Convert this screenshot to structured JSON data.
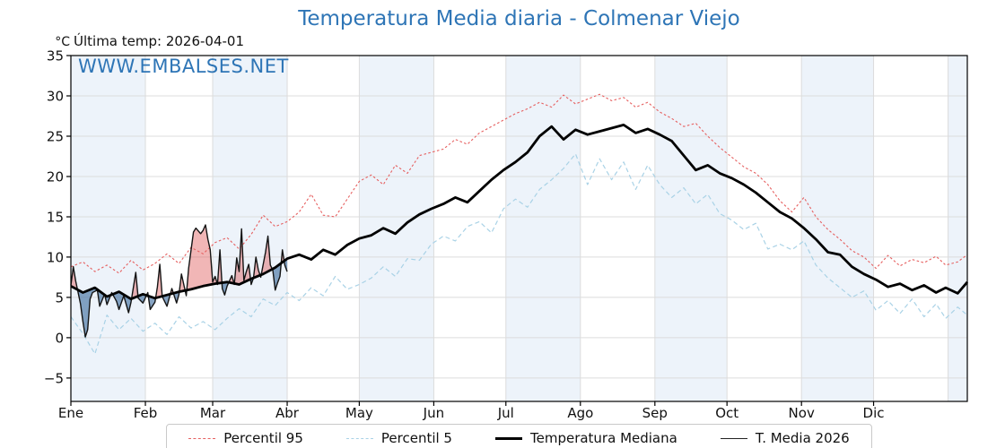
{
  "chart_data": {
    "type": "line",
    "title": "Temperatura Media diaria - Colmenar Viejo",
    "subtitle": "Última temp: 2026-04-01",
    "watermark": "WWW.EMBALSES.NET",
    "colors": {
      "accent_blue": "#2e75b6",
      "month_band": "#edf3fa",
      "grid": "#dcdcdc",
      "frame": "#000000",
      "tick_label": "#111111"
    },
    "x_axis": {
      "tick_labels": [
        "Ene",
        "Feb",
        "Mar",
        "Abr",
        "May",
        "Jun",
        "Jul",
        "Ago",
        "Sep",
        "Oct",
        "Nov",
        "Dic"
      ],
      "month_start_days": [
        1,
        32,
        60,
        91,
        121,
        152,
        182,
        213,
        244,
        274,
        305,
        335,
        366
      ],
      "min_day": 1,
      "max_day": 374,
      "shaded_months": "alternating starting Ene"
    },
    "y_axis": {
      "unit": "°C",
      "ticks": [
        -5,
        0,
        5,
        10,
        15,
        20,
        25,
        30,
        35
      ],
      "min": -7.9,
      "max": 35,
      "grid": true
    },
    "legend": {
      "position": "bottom-center",
      "labels": [
        "Percentil 95",
        "Percentil 5",
        "Temperatura Mediana",
        "T. Media 2026"
      ]
    },
    "fills": [
      {
        "between": [
          "T. Media 2026",
          "Temperatura Mediana"
        ],
        "when": "above",
        "color": "rgba(222,80,80,0.42)"
      },
      {
        "between": [
          "T. Media 2026",
          "Temperatura Mediana"
        ],
        "when": "below",
        "color": "rgba(62,108,158,0.62)"
      }
    ],
    "series": [
      {
        "name": "Percentil 95",
        "style": "dashed",
        "dash": "2.6 2.4",
        "color": "#e66060",
        "width": 1.1,
        "x": [
          1,
          6,
          11,
          16,
          21,
          26,
          31,
          36,
          41,
          46,
          51,
          56,
          61,
          66,
          71,
          76,
          81,
          86,
          91,
          96,
          101,
          106,
          111,
          116,
          121,
          126,
          131,
          136,
          141,
          146,
          151,
          156,
          161,
          166,
          171,
          176,
          181,
          186,
          191,
          196,
          201,
          206,
          211,
          216,
          221,
          226,
          231,
          236,
          241,
          246,
          251,
          256,
          261,
          266,
          271,
          276,
          281,
          286,
          291,
          296,
          301,
          306,
          311,
          316,
          321,
          326,
          331,
          336,
          341,
          346,
          351,
          356,
          361,
          365,
          370,
          374
        ],
        "y": [
          8.8,
          9.4,
          8.2,
          9.0,
          8.0,
          9.6,
          8.4,
          9.2,
          10.4,
          9.2,
          11.2,
          10.4,
          11.8,
          12.4,
          11.0,
          12.8,
          15.2,
          13.8,
          14.4,
          15.6,
          17.8,
          15.2,
          15.0,
          17.2,
          19.4,
          20.2,
          19.0,
          21.4,
          20.4,
          22.6,
          23.0,
          23.4,
          24.6,
          24.0,
          25.4,
          26.2,
          27.0,
          27.8,
          28.4,
          29.2,
          28.6,
          30.1,
          29.0,
          29.6,
          30.2,
          29.4,
          29.8,
          28.6,
          29.2,
          28.0,
          27.2,
          26.2,
          26.6,
          25.0,
          23.6,
          22.4,
          21.2,
          20.4,
          19.0,
          17.0,
          15.6,
          17.4,
          15.0,
          13.4,
          12.2,
          10.8,
          10.0,
          8.6,
          10.2,
          8.9,
          9.7,
          9.3,
          10.1,
          9.0,
          9.4,
          10.3
        ]
      },
      {
        "name": "Percentil 5",
        "style": "dashed",
        "dash": "5 3.4",
        "color": "#a9d2e6",
        "width": 1.2,
        "x": [
          1,
          6,
          11,
          16,
          21,
          26,
          31,
          36,
          41,
          46,
          51,
          56,
          61,
          66,
          71,
          76,
          81,
          86,
          91,
          96,
          101,
          106,
          111,
          116,
          121,
          126,
          131,
          136,
          141,
          146,
          151,
          156,
          161,
          166,
          171,
          176,
          181,
          186,
          191,
          196,
          201,
          206,
          211,
          216,
          221,
          226,
          231,
          236,
          241,
          246,
          251,
          256,
          261,
          266,
          271,
          276,
          281,
          286,
          291,
          296,
          301,
          306,
          311,
          316,
          321,
          326,
          331,
          336,
          341,
          346,
          351,
          356,
          361,
          365,
          370,
          374
        ],
        "y": [
          2.6,
          0.5,
          -2.0,
          2.8,
          1.0,
          2.4,
          0.8,
          1.8,
          0.4,
          2.6,
          1.2,
          2.0,
          1.0,
          2.4,
          3.6,
          2.6,
          4.8,
          4.0,
          5.6,
          4.6,
          6.2,
          5.2,
          7.6,
          6.0,
          6.6,
          7.4,
          8.8,
          7.6,
          9.8,
          9.6,
          11.6,
          12.6,
          12.0,
          13.8,
          14.4,
          13.0,
          16.0,
          17.2,
          16.2,
          18.4,
          19.6,
          21.0,
          22.8,
          19.0,
          22.2,
          19.6,
          21.8,
          18.4,
          21.4,
          19.0,
          17.4,
          18.6,
          16.6,
          17.8,
          15.4,
          14.6,
          13.4,
          14.2,
          11.0,
          11.6,
          10.9,
          12.0,
          9.0,
          7.4,
          6.2,
          5.0,
          5.8,
          3.4,
          4.6,
          3.0,
          4.8,
          2.6,
          4.2,
          2.4,
          3.8,
          2.8
        ]
      },
      {
        "name": "Temperatura Mediana",
        "style": "solid",
        "color": "#000000",
        "width": 2.8,
        "x": [
          1,
          6,
          11,
          16,
          21,
          26,
          31,
          36,
          41,
          46,
          51,
          56,
          61,
          66,
          71,
          76,
          81,
          86,
          91,
          96,
          101,
          106,
          111,
          116,
          121,
          126,
          131,
          136,
          141,
          146,
          151,
          156,
          161,
          166,
          171,
          176,
          181,
          186,
          191,
          196,
          201,
          206,
          211,
          216,
          221,
          226,
          231,
          236,
          241,
          246,
          251,
          256,
          261,
          266,
          271,
          276,
          281,
          286,
          291,
          296,
          301,
          306,
          311,
          316,
          321,
          326,
          331,
          336,
          341,
          346,
          351,
          356,
          361,
          365,
          370,
          374
        ],
        "y": [
          6.4,
          5.6,
          6.2,
          5.1,
          5.7,
          4.8,
          5.4,
          4.9,
          5.3,
          5.7,
          6.0,
          6.4,
          6.7,
          6.9,
          6.6,
          7.3,
          7.9,
          8.7,
          9.8,
          10.3,
          9.7,
          10.9,
          10.3,
          11.5,
          12.3,
          12.7,
          13.6,
          12.9,
          14.3,
          15.3,
          16.0,
          16.6,
          17.4,
          16.8,
          18.2,
          19.6,
          20.8,
          21.8,
          23.0,
          25.0,
          26.2,
          24.6,
          25.8,
          25.2,
          25.6,
          26.0,
          26.4,
          25.4,
          25.9,
          25.2,
          24.4,
          22.6,
          20.8,
          21.4,
          20.4,
          19.8,
          19.0,
          18.0,
          16.8,
          15.6,
          14.8,
          13.6,
          12.2,
          10.6,
          10.3,
          8.8,
          7.9,
          7.2,
          6.3,
          6.7,
          5.9,
          6.5,
          5.6,
          6.2,
          5.5,
          6.9
        ]
      },
      {
        "name": "T. Media 2026",
        "style": "solid",
        "color": "#141414",
        "width": 1.4,
        "x": [
          1,
          2,
          3,
          5,
          6,
          7,
          8,
          9,
          10,
          12,
          13,
          15,
          16,
          18,
          20,
          21,
          23,
          25,
          26,
          28,
          29,
          31,
          33,
          34,
          36,
          37,
          38,
          39,
          41,
          43,
          45,
          46,
          47,
          49,
          50,
          52,
          53,
          55,
          56,
          57,
          58,
          59,
          60,
          61,
          62,
          63,
          64,
          65,
          66,
          68,
          69,
          70,
          71,
          72,
          73,
          74,
          75,
          76,
          77,
          78,
          79,
          80,
          82,
          83,
          84,
          85,
          86,
          87,
          88,
          89,
          90,
          91
        ],
        "y": [
          6.5,
          8.8,
          7.0,
          4.2,
          2.0,
          0.1,
          1.0,
          4.8,
          5.6,
          5.9,
          3.9,
          5.4,
          4.1,
          5.6,
          4.5,
          3.5,
          5.2,
          3.1,
          4.4,
          8.1,
          4.9,
          4.3,
          5.6,
          3.5,
          4.4,
          6.3,
          9.1,
          5.1,
          3.9,
          6.1,
          4.3,
          5.4,
          7.9,
          5.2,
          8.6,
          13.1,
          13.6,
          12.9,
          13.3,
          14.0,
          12.2,
          10.9,
          6.9,
          7.6,
          6.6,
          10.9,
          6.1,
          5.3,
          6.4,
          7.7,
          6.6,
          9.9,
          8.2,
          13.5,
          7.1,
          8.2,
          9.1,
          6.6,
          7.4,
          10.0,
          8.4,
          7.5,
          10.6,
          12.6,
          9.0,
          8.4,
          5.9,
          6.8,
          7.6,
          10.9,
          9.0,
          8.2
        ]
      }
    ]
  }
}
